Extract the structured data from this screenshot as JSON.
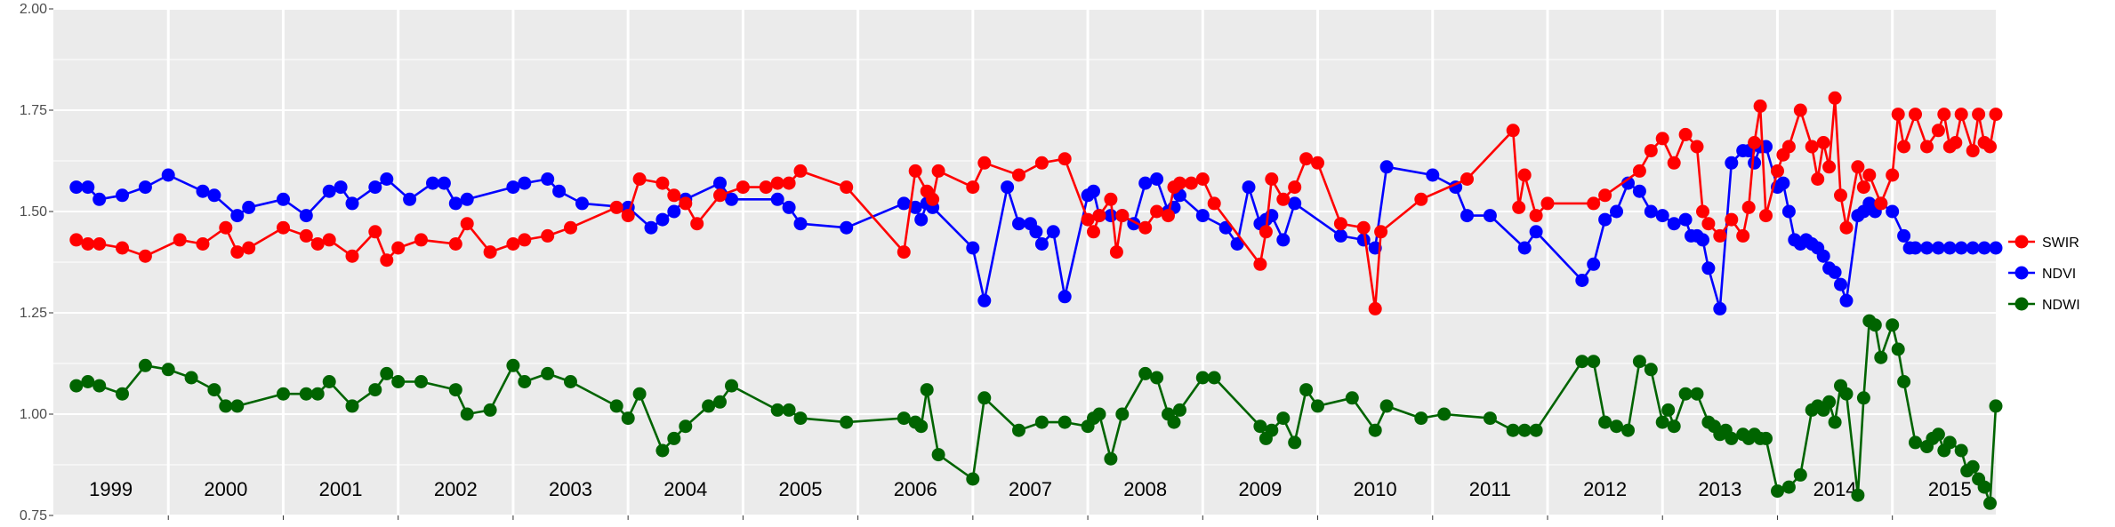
{
  "chart_data": {
    "type": "line",
    "title": "",
    "xlabel": "",
    "ylabel": "",
    "ylim": [
      0.75,
      2.0
    ],
    "xlim": [
      1999.0,
      2015.9
    ],
    "y_ticks": [
      "0.75",
      "1.00",
      "1.25",
      "1.50",
      "1.75",
      "2.00"
    ],
    "year_labels": [
      "1999",
      "2000",
      "2001",
      "2002",
      "2003",
      "2004",
      "2005",
      "2006",
      "2007",
      "2008",
      "2009",
      "2010",
      "2011",
      "2012",
      "2013",
      "2014",
      "2015"
    ],
    "grid": true,
    "legend_position": "right",
    "series": [
      {
        "name": "SWIR",
        "color": "#ff0000",
        "x": [
          1999.2,
          1999.3,
          1999.4,
          1999.6,
          1999.8,
          2000.1,
          2000.3,
          2000.5,
          2000.6,
          2000.7,
          2001.0,
          2001.2,
          2001.3,
          2001.4,
          2001.6,
          2001.8,
          2001.9,
          2002.0,
          2002.2,
          2002.5,
          2002.6,
          2002.8,
          2003.0,
          2003.1,
          2003.3,
          2003.5,
          2003.9,
          2004.0,
          2004.1,
          2004.3,
          2004.4,
          2004.5,
          2004.6,
          2004.8,
          2005.0,
          2005.2,
          2005.3,
          2005.4,
          2005.5,
          2005.9,
          2006.4,
          2006.5,
          2006.6,
          2006.65,
          2006.7,
          2007.0,
          2007.1,
          2007.4,
          2007.6,
          2007.8,
          2008.0,
          2008.05,
          2008.1,
          2008.2,
          2008.25,
          2008.3,
          2008.5,
          2008.6,
          2008.7,
          2008.75,
          2008.8,
          2008.9,
          2009.0,
          2009.1,
          2009.5,
          2009.55,
          2009.6,
          2009.7,
          2009.8,
          2009.9,
          2010.0,
          2010.2,
          2010.4,
          2010.5,
          2010.55,
          2010.9,
          2011.3,
          2011.7,
          2011.75,
          2011.8,
          2011.9,
          2012.0,
          2012.4,
          2012.5,
          2012.8,
          2012.9,
          2013.0,
          2013.1,
          2013.2,
          2013.3,
          2013.35,
          2013.4,
          2013.5,
          2013.6,
          2013.7,
          2013.75,
          2013.8,
          2013.85,
          2013.9,
          2014.0,
          2014.05,
          2014.1,
          2014.2,
          2014.3,
          2014.35,
          2014.4,
          2014.45,
          2014.5,
          2014.55,
          2014.6,
          2014.7,
          2014.75,
          2014.8,
          2014.9,
          2015.0,
          2015.05,
          2015.1,
          2015.2,
          2015.3,
          2015.4,
          2015.45,
          2015.5,
          2015.55,
          2015.6,
          2015.7,
          2015.75,
          2015.8,
          2015.85,
          2015.9
        ],
        "y": [
          1.43,
          1.42,
          1.42,
          1.41,
          1.39,
          1.43,
          1.42,
          1.46,
          1.4,
          1.41,
          1.46,
          1.44,
          1.42,
          1.43,
          1.39,
          1.45,
          1.38,
          1.41,
          1.43,
          1.42,
          1.47,
          1.4,
          1.42,
          1.43,
          1.44,
          1.46,
          1.51,
          1.49,
          1.58,
          1.57,
          1.54,
          1.52,
          1.47,
          1.54,
          1.56,
          1.56,
          1.57,
          1.57,
          1.6,
          1.56,
          1.4,
          1.6,
          1.55,
          1.53,
          1.6,
          1.56,
          1.62,
          1.59,
          1.62,
          1.63,
          1.48,
          1.45,
          1.49,
          1.53,
          1.4,
          1.49,
          1.46,
          1.5,
          1.49,
          1.56,
          1.57,
          1.57,
          1.58,
          1.52,
          1.37,
          1.45,
          1.58,
          1.53,
          1.56,
          1.63,
          1.62,
          1.47,
          1.46,
          1.26,
          1.45,
          1.53,
          1.58,
          1.7,
          1.51,
          1.59,
          1.49,
          1.52,
          1.52,
          1.54,
          1.6,
          1.65,
          1.68,
          1.62,
          1.69,
          1.66,
          1.5,
          1.47,
          1.44,
          1.48,
          1.44,
          1.51,
          1.67,
          1.76,
          1.49,
          1.6,
          1.64,
          1.66,
          1.75,
          1.66,
          1.58,
          1.67,
          1.61,
          1.78,
          1.54,
          1.46,
          1.61,
          1.56,
          1.59,
          1.52,
          1.59,
          1.74,
          1.66,
          1.74,
          1.66,
          1.7,
          1.74,
          1.66,
          1.67,
          1.74,
          1.65,
          1.74,
          1.67,
          1.66,
          1.74
        ],
        "x_note": ""
      },
      {
        "name": "NDVI",
        "color": "#0000ff",
        "x": [
          1999.2,
          1999.3,
          1999.4,
          1999.6,
          1999.8,
          2000.0,
          2000.3,
          2000.4,
          2000.6,
          2000.7,
          2001.0,
          2001.2,
          2001.4,
          2001.5,
          2001.6,
          2001.8,
          2001.9,
          2002.1,
          2002.3,
          2002.4,
          2002.5,
          2002.6,
          2003.0,
          2003.1,
          2003.3,
          2003.4,
          2003.6,
          2004.0,
          2004.2,
          2004.3,
          2004.4,
          2004.5,
          2004.8,
          2004.9,
          2005.3,
          2005.4,
          2005.5,
          2005.9,
          2006.4,
          2006.5,
          2006.55,
          2006.6,
          2006.65,
          2007.0,
          2007.1,
          2007.3,
          2007.4,
          2007.5,
          2007.55,
          2007.6,
          2007.7,
          2007.8,
          2008.0,
          2008.05,
          2008.1,
          2008.2,
          2008.3,
          2008.4,
          2008.5,
          2008.6,
          2008.7,
          2008.75,
          2008.8,
          2009.0,
          2009.2,
          2009.3,
          2009.4,
          2009.5,
          2009.55,
          2009.6,
          2009.7,
          2009.8,
          2010.2,
          2010.4,
          2010.5,
          2010.6,
          2011.0,
          2011.2,
          2011.3,
          2011.5,
          2011.8,
          2011.9,
          2012.3,
          2012.4,
          2012.5,
          2012.6,
          2012.7,
          2012.8,
          2012.9,
          2013.0,
          2013.1,
          2013.2,
          2013.25,
          2013.3,
          2013.35,
          2013.4,
          2013.5,
          2013.6,
          2013.7,
          2013.75,
          2013.8,
          2013.85,
          2013.9,
          2014.0,
          2014.05,
          2014.1,
          2014.15,
          2014.2,
          2014.25,
          2014.3,
          2014.35,
          2014.4,
          2014.45,
          2014.5,
          2014.55,
          2014.6,
          2014.7,
          2014.75,
          2014.8,
          2014.85,
          2014.9,
          2015.0,
          2015.1,
          2015.15,
          2015.2,
          2015.3,
          2015.4,
          2015.5,
          2015.6,
          2015.7,
          2015.8,
          2015.9
        ],
        "y": [
          1.56,
          1.56,
          1.53,
          1.54,
          1.56,
          1.59,
          1.55,
          1.54,
          1.49,
          1.51,
          1.53,
          1.49,
          1.55,
          1.56,
          1.52,
          1.56,
          1.58,
          1.53,
          1.57,
          1.57,
          1.52,
          1.53,
          1.56,
          1.57,
          1.58,
          1.55,
          1.52,
          1.51,
          1.46,
          1.48,
          1.5,
          1.53,
          1.57,
          1.53,
          1.53,
          1.51,
          1.47,
          1.46,
          1.52,
          1.51,
          1.48,
          1.52,
          1.51,
          1.41,
          1.28,
          1.56,
          1.47,
          1.47,
          1.45,
          1.42,
          1.45,
          1.29,
          1.54,
          1.55,
          1.49,
          1.49,
          1.49,
          1.47,
          1.57,
          1.58,
          1.5,
          1.51,
          1.54,
          1.49,
          1.46,
          1.42,
          1.56,
          1.47,
          1.48,
          1.49,
          1.43,
          1.52,
          1.44,
          1.43,
          1.41,
          1.61,
          1.59,
          1.56,
          1.49,
          1.49,
          1.41,
          1.45,
          1.33,
          1.37,
          1.48,
          1.5,
          1.57,
          1.55,
          1.5,
          1.49,
          1.47,
          1.48,
          1.44,
          1.44,
          1.43,
          1.36,
          1.26,
          1.62,
          1.65,
          1.65,
          1.62,
          1.66,
          1.66,
          1.56,
          1.57,
          1.5,
          1.43,
          1.42,
          1.43,
          1.42,
          1.41,
          1.39,
          1.36,
          1.35,
          1.32,
          1.28,
          1.49,
          1.5,
          1.52,
          1.5,
          1.52,
          1.5,
          1.44,
          1.41,
          1.41,
          1.41,
          1.41,
          1.41,
          1.41,
          1.41,
          1.41,
          1.41
        ],
        "x_note": ""
      },
      {
        "name": "NDWI",
        "color": "#006400",
        "x": [
          1999.2,
          1999.3,
          1999.4,
          1999.6,
          1999.8,
          2000.0,
          2000.2,
          2000.4,
          2000.5,
          2000.6,
          2001.0,
          2001.2,
          2001.3,
          2001.4,
          2001.6,
          2001.8,
          2001.9,
          2002.0,
          2002.2,
          2002.5,
          2002.6,
          2002.8,
          2003.0,
          2003.1,
          2003.3,
          2003.5,
          2003.9,
          2004.0,
          2004.1,
          2004.3,
          2004.4,
          2004.5,
          2004.7,
          2004.8,
          2004.9,
          2005.3,
          2005.4,
          2005.5,
          2005.9,
          2006.4,
          2006.5,
          2006.55,
          2006.6,
          2006.7,
          2007.0,
          2007.1,
          2007.4,
          2007.6,
          2007.8,
          2008.0,
          2008.05,
          2008.1,
          2008.2,
          2008.3,
          2008.5,
          2008.6,
          2008.7,
          2008.75,
          2008.8,
          2009.0,
          2009.1,
          2009.5,
          2009.55,
          2009.6,
          2009.7,
          2009.8,
          2009.9,
          2010.0,
          2010.3,
          2010.5,
          2010.6,
          2010.9,
          2011.1,
          2011.5,
          2011.7,
          2011.8,
          2011.9,
          2012.3,
          2012.4,
          2012.5,
          2012.6,
          2012.7,
          2012.8,
          2012.9,
          2013.0,
          2013.05,
          2013.1,
          2013.2,
          2013.3,
          2013.4,
          2013.45,
          2013.5,
          2013.55,
          2013.6,
          2013.7,
          2013.75,
          2013.8,
          2013.85,
          2013.9,
          2014.0,
          2014.1,
          2014.2,
          2014.3,
          2014.35,
          2014.4,
          2014.45,
          2014.5,
          2014.55,
          2014.6,
          2014.7,
          2014.75,
          2014.8,
          2014.85,
          2014.9,
          2015.0,
          2015.05,
          2015.1,
          2015.2,
          2015.3,
          2015.35,
          2015.4,
          2015.45,
          2015.5,
          2015.6,
          2015.65,
          2015.7,
          2015.75,
          2015.8,
          2015.85,
          2015.9
        ],
        "y": [
          1.07,
          1.08,
          1.07,
          1.05,
          1.12,
          1.11,
          1.09,
          1.06,
          1.02,
          1.02,
          1.05,
          1.05,
          1.05,
          1.08,
          1.02,
          1.06,
          1.1,
          1.08,
          1.08,
          1.06,
          1.0,
          1.01,
          1.12,
          1.08,
          1.1,
          1.08,
          1.02,
          0.99,
          1.05,
          0.91,
          0.94,
          0.97,
          1.02,
          1.03,
          1.07,
          1.01,
          1.01,
          0.99,
          0.98,
          0.99,
          0.98,
          0.97,
          1.06,
          0.9,
          0.84,
          1.04,
          0.96,
          0.98,
          0.98,
          0.97,
          0.99,
          1.0,
          0.89,
          1.0,
          1.1,
          1.09,
          1.0,
          0.98,
          1.01,
          1.09,
          1.09,
          0.97,
          0.94,
          0.96,
          0.99,
          0.93,
          1.06,
          1.02,
          1.04,
          0.96,
          1.02,
          0.99,
          1.0,
          0.99,
          0.96,
          0.96,
          0.96,
          1.13,
          1.13,
          0.98,
          0.97,
          0.96,
          1.13,
          1.11,
          0.98,
          1.01,
          0.97,
          1.05,
          1.05,
          0.98,
          0.97,
          0.95,
          0.96,
          0.94,
          0.95,
          0.94,
          0.95,
          0.94,
          0.94,
          0.81,
          0.82,
          0.85,
          1.01,
          1.02,
          1.01,
          1.03,
          0.98,
          1.07,
          1.05,
          0.8,
          1.04,
          1.23,
          1.22,
          1.14,
          1.22,
          1.16,
          1.08,
          0.93,
          0.92,
          0.94,
          0.95,
          0.91,
          0.93,
          0.91,
          0.86,
          0.87,
          0.84,
          0.82,
          0.78,
          1.02
        ],
        "x_note": ""
      }
    ]
  }
}
